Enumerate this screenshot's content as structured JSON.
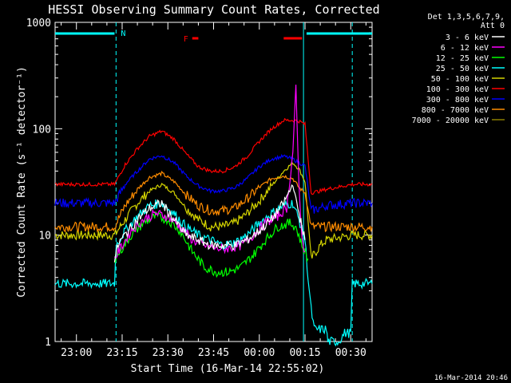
{
  "chart_data": {
    "type": "line",
    "title": "HESSI Observing Summary Count Rates, Corrected",
    "ylabel": "Corrected Count Rate (s⁻¹ detector⁻¹)",
    "xlabel": "Start Time (16-Mar-14 22:55:02)",
    "yscale": "log",
    "ylim": [
      1,
      1000
    ],
    "xlim_min": [
      -7,
      97
    ],
    "y_ticks": [
      "1",
      "10",
      "100",
      "1000"
    ],
    "x_ticks": [
      {
        "label": "23:00",
        "min": 0
      },
      {
        "label": "23:15",
        "min": 15
      },
      {
        "label": "23:30",
        "min": 30
      },
      {
        "label": "23:45",
        "min": 45
      },
      {
        "label": "00:00",
        "min": 60
      },
      {
        "label": "00:15",
        "min": 75
      },
      {
        "label": "00:30",
        "min": 90
      }
    ],
    "legend": {
      "position": "top-right",
      "header": [
        "Det 1,3,5,6,7,9,",
        "Att 0"
      ],
      "entries": [
        {
          "label": "3 - 6 keV",
          "color": "#ffffff"
        },
        {
          "label": "6 - 12 keV",
          "color": "#ff00ff"
        },
        {
          "label": "12 - 25 keV",
          "color": "#00ff00"
        },
        {
          "label": "25 - 50 keV",
          "color": "#00ffff"
        },
        {
          "label": "50 - 100 keV",
          "color": "#d4d400"
        },
        {
          "label": "100 - 300 keV",
          "color": "#ff0000"
        },
        {
          "label": "300 - 800 keV",
          "color": "#0000ff"
        },
        {
          "label": "800 - 7000 keV",
          "color": "#ff8c00"
        },
        {
          "label": "7000 - 20000 keV",
          "color": "#8b7d00"
        }
      ]
    },
    "series": [
      {
        "name": "3 - 6 keV",
        "color": "#ffffff",
        "x": [
          12.5,
          14,
          17,
          20,
          24,
          28,
          32,
          36,
          40,
          44,
          48,
          52,
          56,
          60,
          64,
          68,
          71,
          73,
          75
        ],
        "y": [
          6,
          8.5,
          11,
          14,
          18,
          20,
          14,
          10,
          9,
          8,
          8,
          8,
          9,
          11,
          14,
          20,
          30,
          16,
          9
        ]
      },
      {
        "name": "6 - 12 keV",
        "color": "#ff00ff",
        "x": [
          12.5,
          15,
          18,
          22,
          26,
          30,
          34,
          38,
          42,
          46,
          50,
          54,
          58,
          62,
          66,
          69,
          71,
          72,
          73,
          74,
          75
        ],
        "y": [
          6,
          8,
          11,
          14,
          16,
          15,
          12,
          9,
          8,
          7.5,
          7.5,
          8,
          10,
          13,
          15,
          18,
          60,
          250,
          30,
          9,
          7
        ]
      },
      {
        "name": "12 - 25 keV",
        "color": "#00ff00",
        "x": [
          12.5,
          15,
          18,
          22,
          26,
          30,
          34,
          38,
          42,
          46,
          50,
          54,
          58,
          62,
          66,
          70,
          72,
          74,
          76
        ],
        "y": [
          6,
          7.5,
          10,
          13,
          15,
          14,
          11,
          7,
          5,
          4.5,
          4.5,
          5,
          6.5,
          9,
          12,
          13,
          12,
          8,
          6
        ]
      },
      {
        "name": "25 - 50 keV",
        "color": "#00ffff",
        "x": [
          -7,
          12.5,
          13,
          16,
          20,
          24,
          28,
          32,
          36,
          40,
          44,
          48,
          52,
          56,
          60,
          64,
          68,
          71,
          73,
          75,
          76,
          77,
          78,
          82,
          82.5,
          86,
          88,
          90,
          90.5,
          94,
          97
        ],
        "y": [
          3.5,
          3.5,
          8,
          11,
          15,
          19,
          20,
          16,
          12,
          10,
          9,
          8,
          8.5,
          10,
          13,
          16,
          19,
          20,
          14,
          9,
          4,
          2,
          1.3,
          1.3,
          1,
          1,
          1.2,
          1.2,
          3.5,
          3.5,
          3.5
        ]
      },
      {
        "name": "50 - 100 keV",
        "color": "#d4d400",
        "x": [
          -7,
          12.5,
          16,
          20,
          24,
          28,
          32,
          36,
          40,
          44,
          48,
          52,
          56,
          60,
          64,
          68,
          71,
          73,
          75,
          77,
          80,
          82,
          90.5,
          94,
          97
        ],
        "y": [
          10,
          10,
          14,
          20,
          26,
          30,
          25,
          18,
          14,
          12,
          12,
          13,
          16,
          21,
          29,
          40,
          48,
          42,
          32,
          6,
          8,
          9,
          10,
          10,
          10
        ]
      },
      {
        "name": "100 - 300 keV",
        "color": "#ff0000",
        "x": [
          -7,
          12.5,
          16,
          20,
          24,
          28,
          32,
          36,
          40,
          44,
          48,
          52,
          56,
          60,
          64,
          68,
          71,
          73,
          75,
          77,
          80,
          82,
          90.5,
          94,
          97
        ],
        "y": [
          30,
          30,
          46,
          65,
          85,
          95,
          80,
          58,
          44,
          40,
          40,
          44,
          55,
          76,
          100,
          120,
          120,
          118,
          110,
          25,
          26,
          27,
          30,
          30,
          30
        ]
      },
      {
        "name": "300 - 800 keV",
        "color": "#0000ff",
        "x": [
          -7,
          12.5,
          16,
          20,
          24,
          28,
          32,
          36,
          40,
          44,
          48,
          52,
          56,
          60,
          64,
          68,
          71,
          73,
          75,
          77,
          80,
          82,
          90.5,
          94,
          97
        ],
        "y": [
          20,
          20,
          30,
          40,
          52,
          56,
          48,
          36,
          29,
          26,
          26,
          28,
          34,
          44,
          52,
          55,
          52,
          48,
          45,
          17,
          18,
          19,
          20,
          20,
          20
        ]
      },
      {
        "name": "800 - 7000 keV",
        "color": "#ff8c00",
        "x": [
          -7,
          12.5,
          16,
          20,
          24,
          28,
          32,
          36,
          40,
          44,
          48,
          52,
          56,
          60,
          64,
          68,
          71,
          73,
          75,
          77,
          80,
          82,
          90.5,
          94,
          97
        ],
        "y": [
          12,
          12,
          19,
          27,
          35,
          38,
          32,
          24,
          19,
          17,
          17,
          18,
          22,
          28,
          34,
          36,
          34,
          28,
          25,
          12,
          12,
          12,
          12,
          12,
          12
        ]
      }
    ],
    "annotations": [
      {
        "text": "N",
        "color": "#00ffff"
      },
      {
        "text": "F",
        "color": "#ff0000"
      }
    ],
    "footer_stamp": "16-Mar-2014 20:46"
  }
}
